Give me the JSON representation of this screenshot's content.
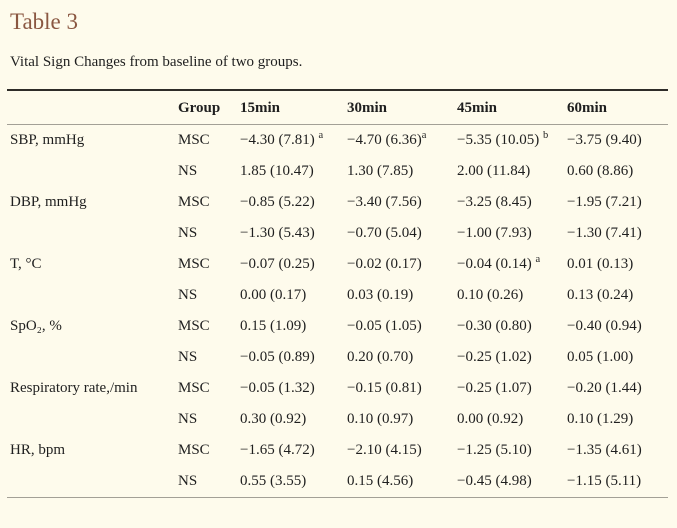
{
  "page": {
    "title": "Table 3",
    "caption": "Vital Sign Changes from baseline of two groups."
  },
  "colors": {
    "background": "#fefbec",
    "accent_title": "#8a5741",
    "text": "#1f1f1f",
    "rule_dark": "#2e2c28",
    "rule_light": "#a3a096"
  },
  "table": {
    "headers": [
      "",
      "Group",
      "15min",
      "30min",
      "45min",
      "60min"
    ],
    "rows": [
      {
        "label": "SBP, mmHg",
        "group": "MSC",
        "cells": [
          {
            "v": "−4.30 (7.81) ",
            "sup": "a"
          },
          {
            "v": "−4.70 (6.36)",
            "sup": "a"
          },
          {
            "v": "−5.35 (10.05) ",
            "sup": "b"
          },
          {
            "v": "−3.75 (9.40)",
            "sup": ""
          }
        ]
      },
      {
        "label": "",
        "group": "NS",
        "cells": [
          {
            "v": "1.85 (10.47)",
            "sup": ""
          },
          {
            "v": "1.30 (7.85)",
            "sup": ""
          },
          {
            "v": "2.00 (11.84)",
            "sup": ""
          },
          {
            "v": "0.60 (8.86)",
            "sup": ""
          }
        ]
      },
      {
        "label": "DBP, mmHg",
        "group": "MSC",
        "cells": [
          {
            "v": "−0.85 (5.22)",
            "sup": ""
          },
          {
            "v": "−3.40 (7.56)",
            "sup": ""
          },
          {
            "v": "−3.25 (8.45)",
            "sup": ""
          },
          {
            "v": "−1.95 (7.21)",
            "sup": ""
          }
        ]
      },
      {
        "label": "",
        "group": "NS",
        "cells": [
          {
            "v": "−1.30 (5.43)",
            "sup": ""
          },
          {
            "v": "−0.70 (5.04)",
            "sup": ""
          },
          {
            "v": "−1.00 (7.93)",
            "sup": ""
          },
          {
            "v": "−1.30 (7.41)",
            "sup": ""
          }
        ]
      },
      {
        "label": "T, °C",
        "group": "MSC",
        "cells": [
          {
            "v": "−0.07 (0.25)",
            "sup": ""
          },
          {
            "v": "−0.02 (0.17)",
            "sup": ""
          },
          {
            "v": "−0.04 (0.14) ",
            "sup": "a"
          },
          {
            "v": "0.01 (0.13)",
            "sup": ""
          }
        ]
      },
      {
        "label": "",
        "group": "NS",
        "cells": [
          {
            "v": "0.00 (0.17)",
            "sup": ""
          },
          {
            "v": "0.03 (0.19)",
            "sup": ""
          },
          {
            "v": "0.10 (0.26)",
            "sup": ""
          },
          {
            "v": "0.13 (0.24)",
            "sup": ""
          }
        ]
      },
      {
        "label": "SpO₂, %",
        "group": "MSC",
        "cells": [
          {
            "v": "0.15 (1.09)",
            "sup": ""
          },
          {
            "v": "−0.05 (1.05)",
            "sup": ""
          },
          {
            "v": "−0.30 (0.80)",
            "sup": ""
          },
          {
            "v": "−0.40 (0.94)",
            "sup": ""
          }
        ]
      },
      {
        "label": "",
        "group": "NS",
        "cells": [
          {
            "v": "−0.05 (0.89)",
            "sup": ""
          },
          {
            "v": "0.20 (0.70)",
            "sup": ""
          },
          {
            "v": "−0.25 (1.02)",
            "sup": ""
          },
          {
            "v": "0.05 (1.00)",
            "sup": ""
          }
        ]
      },
      {
        "label": "Respiratory rate,/min",
        "group": "MSC",
        "cells": [
          {
            "v": "−0.05 (1.32)",
            "sup": ""
          },
          {
            "v": "−0.15 (0.81)",
            "sup": ""
          },
          {
            "v": "−0.25 (1.07)",
            "sup": ""
          },
          {
            "v": "−0.20 (1.44)",
            "sup": ""
          }
        ]
      },
      {
        "label": "",
        "group": "NS",
        "cells": [
          {
            "v": "0.30 (0.92)",
            "sup": ""
          },
          {
            "v": "0.10 (0.97)",
            "sup": ""
          },
          {
            "v": "0.00 (0.92)",
            "sup": ""
          },
          {
            "v": "0.10 (1.29)",
            "sup": ""
          }
        ]
      },
      {
        "label": "HR, bpm",
        "group": "MSC",
        "cells": [
          {
            "v": "−1.65 (4.72)",
            "sup": ""
          },
          {
            "v": "−2.10 (4.15)",
            "sup": ""
          },
          {
            "v": "−1.25 (5.10)",
            "sup": ""
          },
          {
            "v": "−1.35 (4.61)",
            "sup": ""
          }
        ]
      },
      {
        "label": "",
        "group": "NS",
        "cells": [
          {
            "v": "0.55 (3.55)",
            "sup": ""
          },
          {
            "v": "0.15 (4.56)",
            "sup": ""
          },
          {
            "v": "−0.45 (4.98)",
            "sup": ""
          },
          {
            "v": "−1.15 (5.11)",
            "sup": ""
          }
        ]
      }
    ]
  }
}
